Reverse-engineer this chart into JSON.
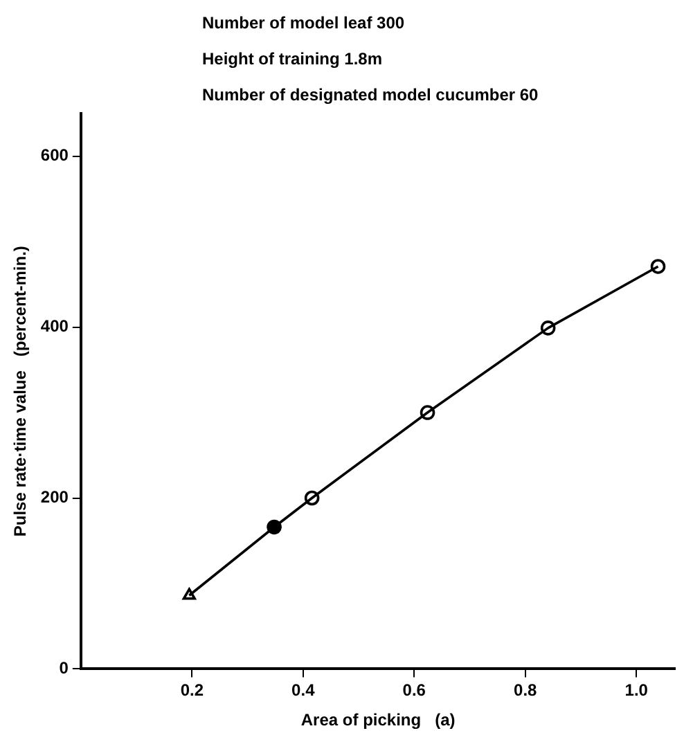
{
  "chart_data": {
    "type": "line",
    "xlabel": "Area of picking   (a)",
    "ylabel": "Pulse rate·time value   (percent-min.)",
    "annotations": [
      "Number of model leaf 300",
      "Height of training 1.8m",
      "Number of designated model cucumber 60"
    ],
    "series": [
      {
        "color": "#000000",
        "marker": "none",
        "x": [
          0.195,
          0.348,
          0.416,
          0.624,
          0.841,
          1.039
        ],
        "values": [
          86,
          166,
          200,
          300,
          399,
          471
        ]
      },
      {
        "type": "scatter",
        "color": "#000000",
        "marker": "triangle",
        "x": [
          0.195
        ],
        "values": [
          86
        ]
      },
      {
        "type": "scatter",
        "color": "#000000",
        "marker": "circle",
        "x": [
          0.348
        ],
        "values": [
          166
        ]
      },
      {
        "type": "scatter",
        "color": "#000000",
        "marker": "circle",
        "x": [
          0.416,
          0.624,
          0.841,
          1.039
        ],
        "values": [
          200,
          300,
          399,
          471
        ]
      }
    ],
    "xlim": [
      0,
      1.07
    ],
    "xticks": [
      0.2,
      0.4,
      0.6,
      0.8,
      {
        "value": 1,
        "label": "1.0"
      }
    ],
    "ylim": [
      0,
      650
    ],
    "yticks": [
      0,
      200,
      400,
      600
    ],
    "grid": false,
    "legend": false,
    "line_style": "solid"
  }
}
